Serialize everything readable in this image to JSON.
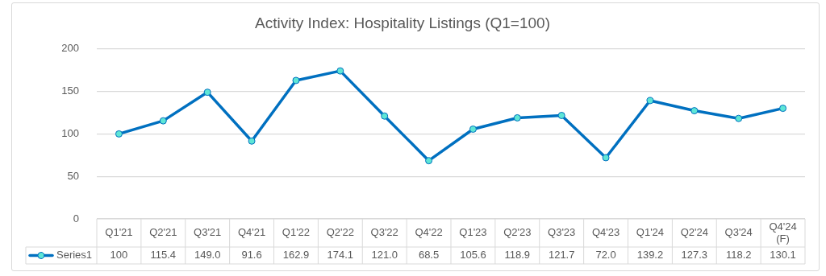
{
  "chart_data": {
    "type": "line",
    "title": "Activity Index: Hospitality Listings (Q1=100)",
    "categories": [
      "Q1'21",
      "Q2'21",
      "Q3'21",
      "Q4'21",
      "Q1'22",
      "Q2'22",
      "Q3'22",
      "Q4'22",
      "Q1'23",
      "Q2'23",
      "Q3'23",
      "Q4'23",
      "Q1'24",
      "Q2'24",
      "Q3'24",
      "Q4'24 (F)"
    ],
    "series": [
      {
        "name": "Series1",
        "color": "#0070c0",
        "values": [
          100,
          115.4,
          149.0,
          91.6,
          162.9,
          174.1,
          121.0,
          68.5,
          105.6,
          118.9,
          121.7,
          72.0,
          139.2,
          127.3,
          118.2,
          130.1
        ],
        "value_labels": [
          "100",
          "115.4",
          "149.0",
          "91.6",
          "162.9",
          "174.1",
          "121.0",
          "68.5",
          "105.6",
          "118.9",
          "121.7",
          "72.0",
          "139.2",
          "127.3",
          "118.2",
          "130.1"
        ]
      }
    ],
    "ylim": [
      0,
      200
    ],
    "yticks": [
      0,
      50,
      100,
      150,
      200
    ],
    "grid": "y",
    "legend": "bottom",
    "marker": "circle",
    "line_style": "solid"
  }
}
